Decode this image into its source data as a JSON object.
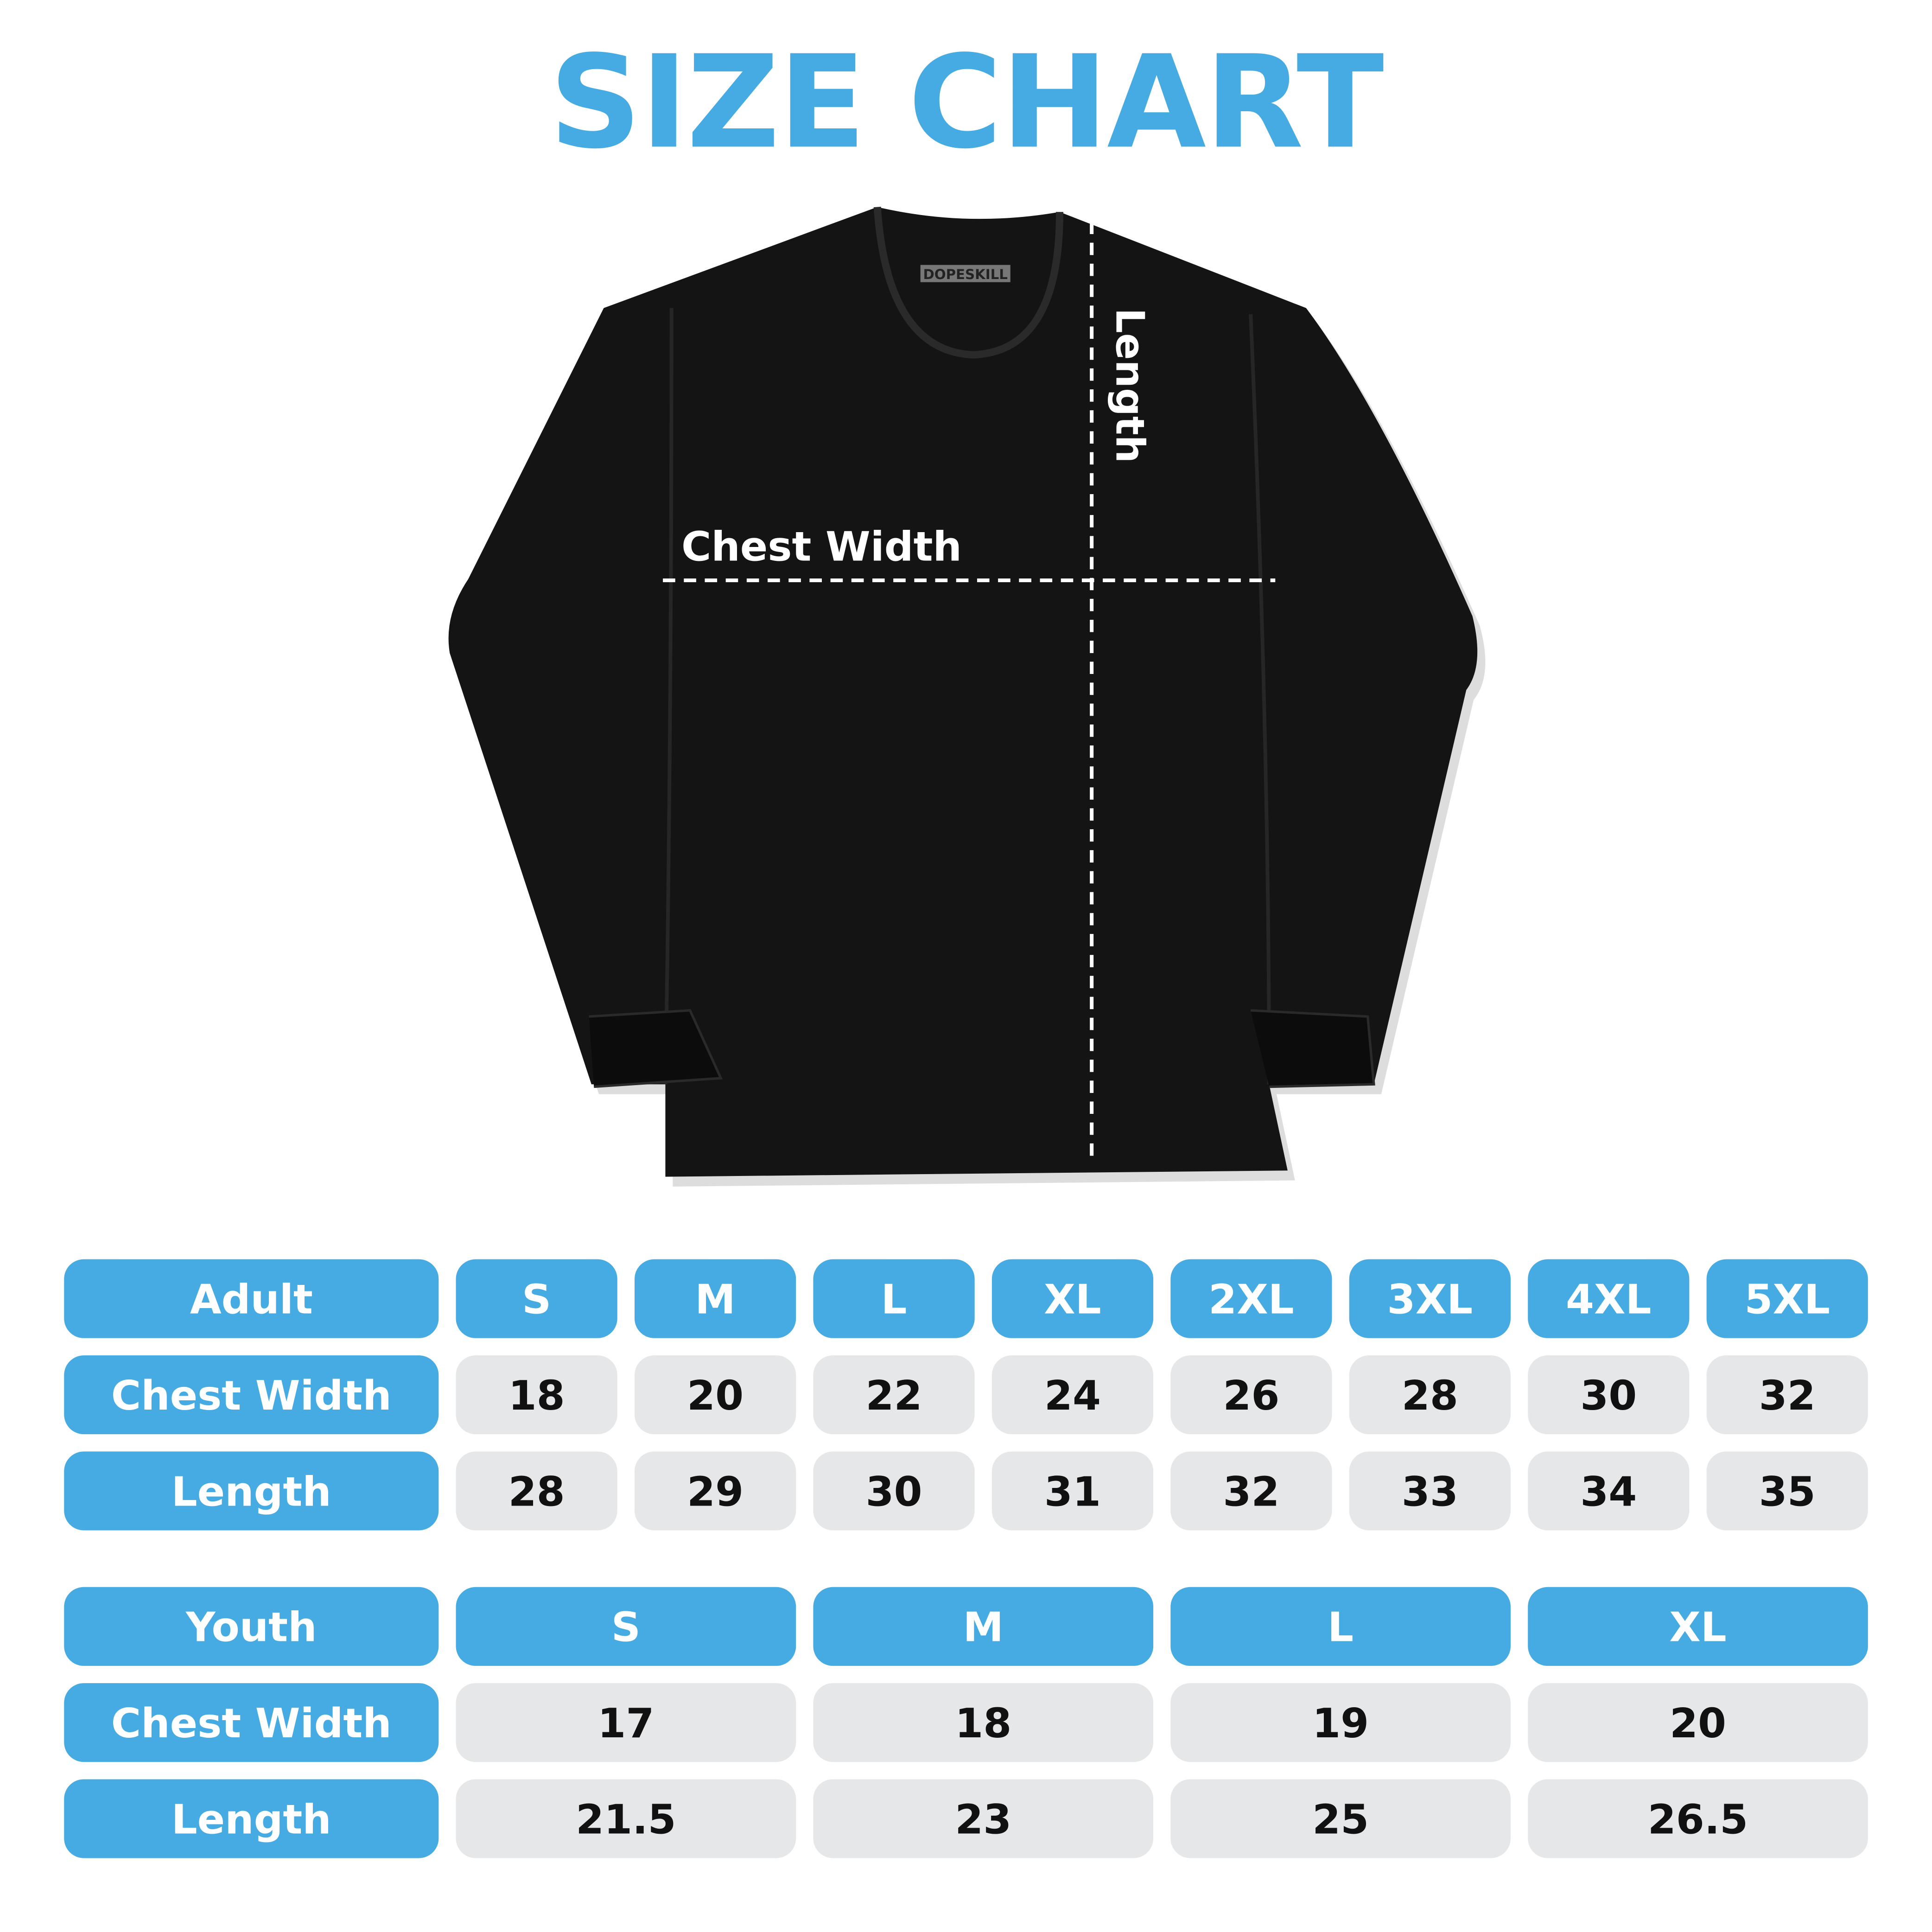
{
  "title": "SIZE CHART",
  "colors": {
    "accent": "#45abe2",
    "cell_bg": "#e6e7e8",
    "shirt": "#111111"
  },
  "shirt": {
    "brand_tag": "DOPESKILL",
    "chest_label": "Chest Width",
    "length_label": "Length"
  },
  "adult": {
    "header": "Adult",
    "sizes": [
      "S",
      "M",
      "L",
      "XL",
      "2XL",
      "3XL",
      "4XL",
      "5XL"
    ],
    "rows": [
      {
        "label": "Chest Width",
        "values": [
          "18",
          "20",
          "22",
          "24",
          "26",
          "28",
          "30",
          "32"
        ]
      },
      {
        "label": "Length",
        "values": [
          "28",
          "29",
          "30",
          "31",
          "32",
          "33",
          "34",
          "35"
        ]
      }
    ]
  },
  "youth": {
    "header": "Youth",
    "sizes": [
      "S",
      "M",
      "L",
      "XL"
    ],
    "rows": [
      {
        "label": "Chest Width",
        "values": [
          "17",
          "18",
          "19",
          "20"
        ]
      },
      {
        "label": "Length",
        "values": [
          "21.5",
          "23",
          "25",
          "26.5"
        ]
      }
    ]
  }
}
